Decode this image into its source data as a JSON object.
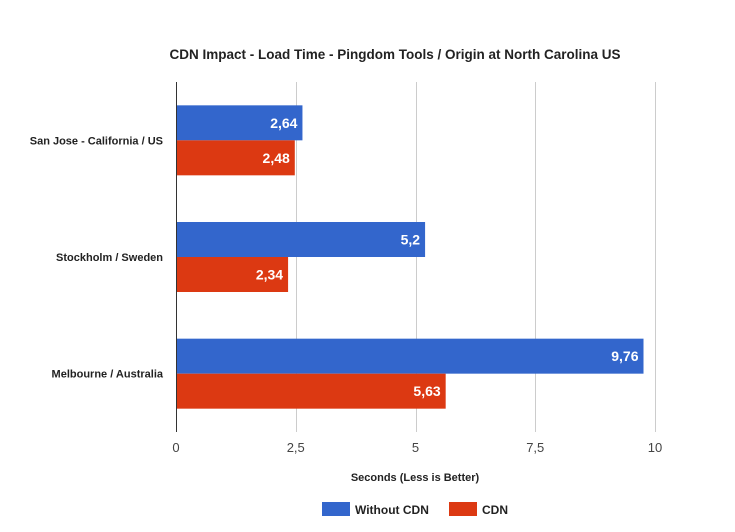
{
  "chart_data": {
    "type": "bar",
    "orientation": "horizontal",
    "title": "CDN Impact - Load Time - Pingdom Tools / Origin at North Carolina US",
    "xlabel": "Seconds (Less is Better)",
    "ylabel": "",
    "categories": [
      "San Jose - California / US",
      "Stockholm / Sweden",
      "Melbourne / Australia"
    ],
    "series": [
      {
        "name": "Without CDN",
        "color": "#3366cc",
        "values": [
          2.64,
          5.2,
          9.76
        ],
        "labels": [
          "2,64",
          "5,2",
          "9,76"
        ]
      },
      {
        "name": "CDN",
        "color": "#dc3912",
        "values": [
          2.48,
          2.34,
          5.63
        ],
        "labels": [
          "2,48",
          "2,34",
          "5,63"
        ]
      }
    ],
    "xlim": [
      0,
      10
    ],
    "xticks": [
      0,
      2.5,
      5,
      7.5,
      10
    ],
    "xtick_labels": [
      "0",
      "2,5",
      "5",
      "7,5",
      "10"
    ],
    "grid": true,
    "legend_position": "bottom"
  }
}
